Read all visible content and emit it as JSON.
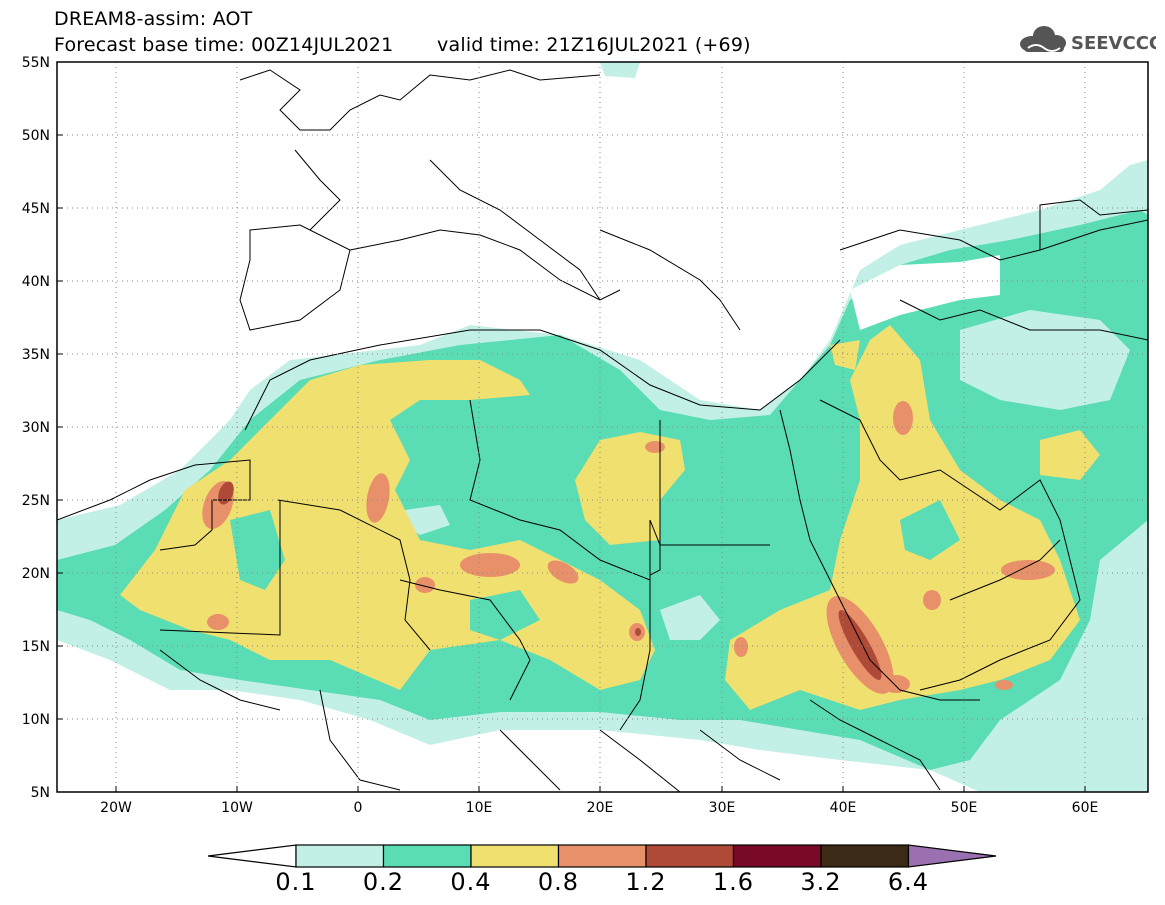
{
  "header": {
    "title": "DREAM8-assim: AOT",
    "base_time": "Forecast base time: 00Z14JUL2021",
    "valid_time": "valid time: 21Z16JUL2021 (+69)",
    "logo_text": "SEEVCCC"
  },
  "axes": {
    "lat_labels": [
      "55N",
      "50N",
      "45N",
      "40N",
      "35N",
      "30N",
      "25N",
      "20N",
      "15N",
      "10N",
      "5N"
    ],
    "lon_labels": [
      "20W",
      "10W",
      "0",
      "10E",
      "20E",
      "30E",
      "40E",
      "50E",
      "60E"
    ]
  },
  "colorbar": {
    "labels": [
      "0.1",
      "0.2",
      "0.4",
      "0.8",
      "1.2",
      "1.6",
      "3.2",
      "6.4"
    ],
    "colors": [
      "#c3f0e6",
      "#5adcb4",
      "#f0e070",
      "#e8906a",
      "#b04a38",
      "#780a28",
      "#3a2a16",
      "#9a70b0"
    ]
  },
  "colors": {
    "ocean": "#ffffff",
    "aot_0_1": "#c3f0e6",
    "aot_0_2": "#5adcb4",
    "aot_0_4": "#f0e070",
    "aot_0_8": "#e8906a",
    "aot_1_2": "#b04a38"
  }
}
